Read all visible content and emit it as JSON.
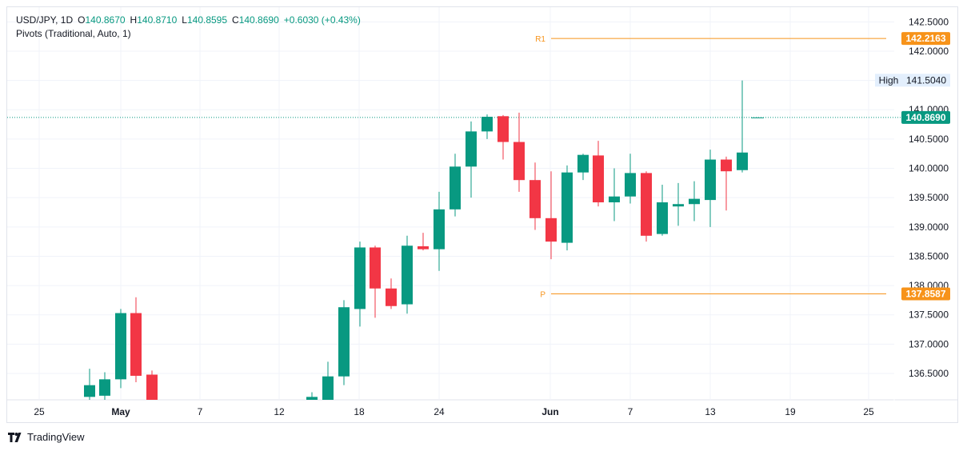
{
  "header": {
    "symbol": "USD/JPY, 1D",
    "open_label": "O",
    "open": "140.8670",
    "high_label": "H",
    "high": "140.8710",
    "low_label": "L",
    "low": "140.8595",
    "close_label": "C",
    "close": "140.8690",
    "change": "+0.6030 (+0.43%)",
    "indicator": "Pivots (Traditional, Auto, 1)"
  },
  "colors": {
    "up": "#089981",
    "down": "#f23645",
    "pivot": "#f7931a",
    "price_line": "#089981"
  },
  "brand": {
    "name": "TradingView",
    "icon": "tradingview-logo-icon"
  },
  "chart_data": {
    "type": "candlestick",
    "ylim": [
      136.05,
      142.75
    ],
    "y_ticks": [
      "136.5000",
      "137.0000",
      "137.5000",
      "138.0000",
      "138.5000",
      "139.0000",
      "139.5000",
      "140.0000",
      "140.5000",
      "141.0000",
      "141.5000",
      "142.0000",
      "142.5000"
    ],
    "x_ticks": [
      "25",
      "May",
      "7",
      "12",
      "18",
      "24",
      "Jun",
      "7",
      "13",
      "19",
      "25"
    ],
    "pivots": [
      {
        "label": "R1",
        "value": "142.2163"
      },
      {
        "label": "P",
        "value": "137.8587"
      }
    ],
    "high_marker": {
      "label": "High",
      "value": "141.5040"
    },
    "last_price": "140.8690",
    "candles": [
      {
        "o": 136.1,
        "h": 136.58,
        "l": 136.0,
        "c": 136.3
      },
      {
        "o": 136.12,
        "h": 136.52,
        "l": 136.05,
        "c": 136.4
      },
      {
        "o": 136.4,
        "h": 137.6,
        "l": 136.25,
        "c": 137.53
      },
      {
        "o": 137.53,
        "h": 137.8,
        "l": 136.35,
        "c": 136.46
      },
      {
        "o": 136.48,
        "h": 136.55,
        "l": 136.0,
        "c": 136.05
      },
      {
        "o": 136.05,
        "h": 136.18,
        "l": 136.0,
        "c": 136.1
      },
      {
        "o": 136.05,
        "h": 136.7,
        "l": 136.0,
        "c": 136.45
      },
      {
        "o": 136.45,
        "h": 137.75,
        "l": 136.3,
        "c": 137.63
      },
      {
        "o": 137.6,
        "h": 138.75,
        "l": 137.3,
        "c": 138.65
      },
      {
        "o": 138.65,
        "h": 138.68,
        "l": 137.45,
        "c": 137.95
      },
      {
        "o": 137.95,
        "h": 138.12,
        "l": 137.6,
        "c": 137.65
      },
      {
        "o": 137.68,
        "h": 138.85,
        "l": 137.52,
        "c": 138.68
      },
      {
        "o": 138.67,
        "h": 138.9,
        "l": 138.6,
        "c": 138.62
      },
      {
        "o": 138.62,
        "h": 139.6,
        "l": 138.25,
        "c": 139.3
      },
      {
        "o": 139.3,
        "h": 140.25,
        "l": 139.18,
        "c": 140.03
      },
      {
        "o": 140.03,
        "h": 140.8,
        "l": 139.5,
        "c": 140.63
      },
      {
        "o": 140.63,
        "h": 140.92,
        "l": 140.5,
        "c": 140.88
      },
      {
        "o": 140.89,
        "h": 140.91,
        "l": 140.15,
        "c": 140.45
      },
      {
        "o": 140.45,
        "h": 140.95,
        "l": 139.6,
        "c": 139.8
      },
      {
        "o": 139.8,
        "h": 140.1,
        "l": 138.95,
        "c": 139.15
      },
      {
        "o": 139.15,
        "h": 139.95,
        "l": 138.45,
        "c": 138.75
      },
      {
        "o": 138.73,
        "h": 140.05,
        "l": 138.6,
        "c": 139.93
      },
      {
        "o": 139.93,
        "h": 140.25,
        "l": 139.8,
        "c": 140.23
      },
      {
        "o": 140.22,
        "h": 140.47,
        "l": 139.35,
        "c": 139.42
      },
      {
        "o": 139.42,
        "h": 140.0,
        "l": 139.1,
        "c": 139.52
      },
      {
        "o": 139.52,
        "h": 140.25,
        "l": 139.4,
        "c": 139.92
      },
      {
        "o": 139.92,
        "h": 139.95,
        "l": 138.75,
        "c": 138.85
      },
      {
        "o": 138.88,
        "h": 139.72,
        "l": 138.85,
        "c": 139.42
      },
      {
        "o": 139.35,
        "h": 139.75,
        "l": 139.02,
        "c": 139.39
      },
      {
        "o": 139.39,
        "h": 139.78,
        "l": 139.1,
        "c": 139.48
      },
      {
        "o": 139.46,
        "h": 140.32,
        "l": 139.0,
        "c": 140.15
      },
      {
        "o": 140.15,
        "h": 140.2,
        "l": 139.28,
        "c": 139.95
      },
      {
        "o": 139.97,
        "h": 141.5,
        "l": 139.93,
        "c": 140.27
      },
      {
        "o": 140.867,
        "h": 140.871,
        "l": 140.8595,
        "c": 140.869
      }
    ]
  }
}
